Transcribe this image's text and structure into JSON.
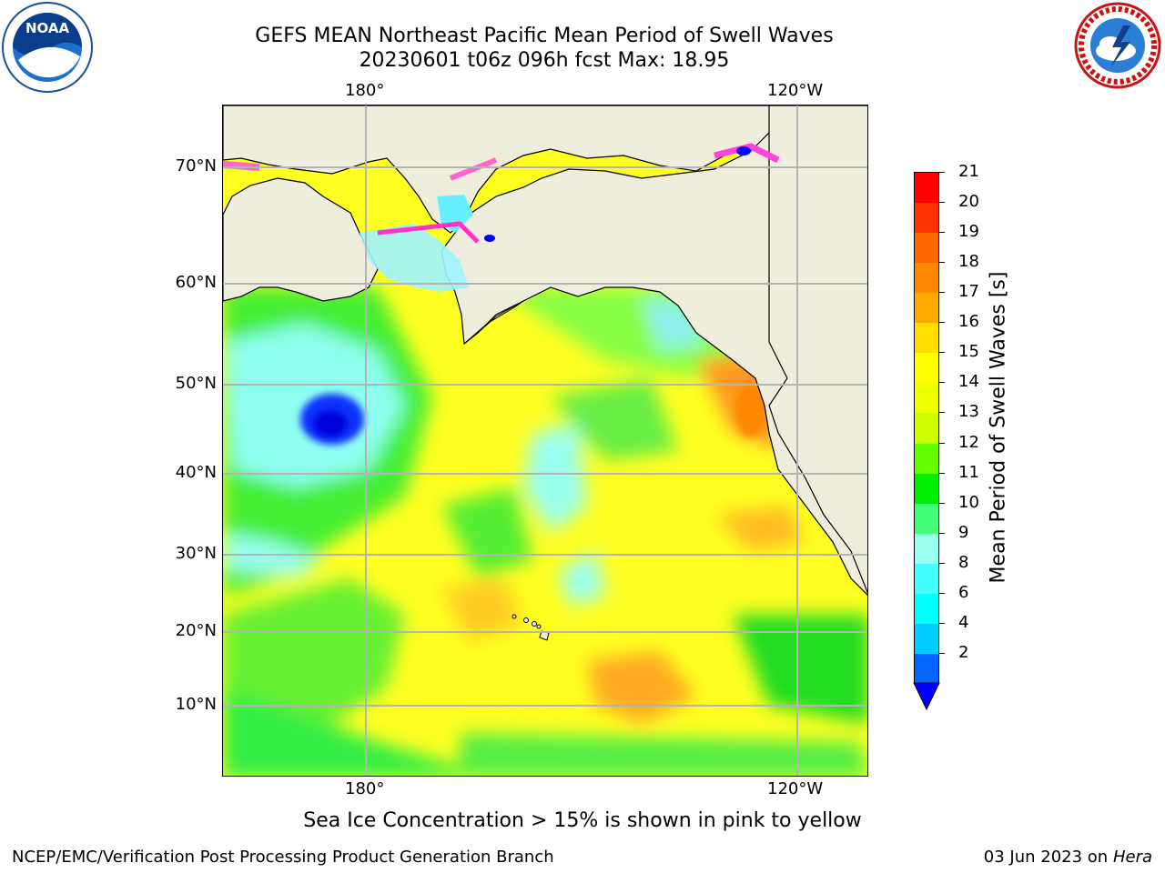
{
  "title_line1": "GEFS MEAN Northeast Pacific Mean Period of Swell Waves",
  "title_line2": "20230601 t06z 096h fcst   Max: 18.95",
  "map": {
    "lon_labels_top": [
      "180°",
      "120°W"
    ],
    "lon_labels_bottom": [
      "180°",
      "120°W"
    ],
    "lat_labels": [
      "70°N",
      "60°N",
      "50°N",
      "40°N",
      "30°N",
      "20°N",
      "10°N"
    ],
    "land_color": "#efeedc",
    "grid_color": "#b4b4b4"
  },
  "colorbar": {
    "label": "Mean Period of Swell Waves [s]",
    "ticks": [
      "21",
      "20",
      "19",
      "18",
      "17",
      "16",
      "15",
      "14",
      "13",
      "12",
      "11",
      "10",
      "9",
      "8",
      "6",
      "4",
      "2"
    ],
    "colors": [
      "#ff0000",
      "#ff3300",
      "#ff6600",
      "#ff8800",
      "#ffaa00",
      "#ffdd00",
      "#ffff00",
      "#eeff00",
      "#ccff00",
      "#66ff00",
      "#00ee00",
      "#44ff77",
      "#99ffee",
      "#44ffff",
      "#00ffff",
      "#00ccff",
      "#0066ff",
      "#0000ff"
    ]
  },
  "sea_ice_note": "Sea Ice Concentration > 15% is shown in pink to yellow",
  "footer": {
    "left": "NCEP/EMC/Verification Post Processing Product Generation Branch",
    "right_date": "03 Jun 2023 on",
    "right_host": "Hera"
  },
  "logos": {
    "left": "noaa-logo",
    "right": "nws-logo"
  }
}
